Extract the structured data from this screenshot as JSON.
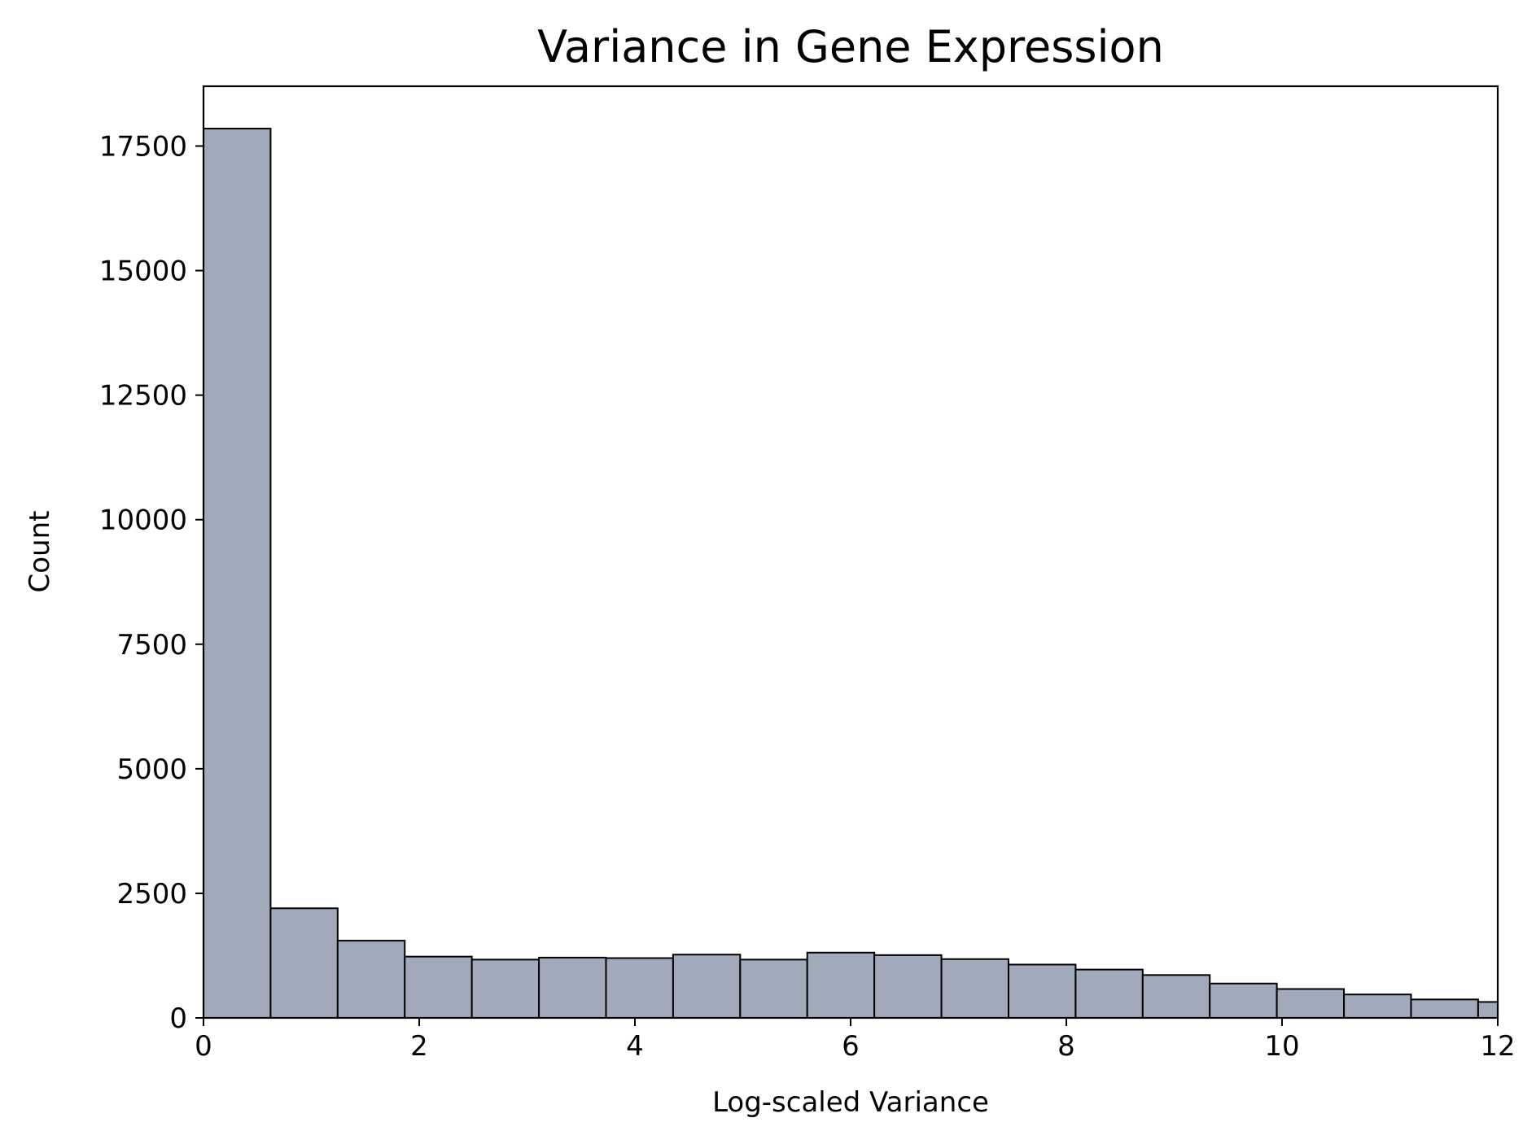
{
  "chart_data": {
    "type": "bar",
    "title": "Variance in Gene Expression",
    "xlabel": "Log-scaled Variance",
    "ylabel": "Count",
    "xlim": [
      0,
      12
    ],
    "ylim": [
      0,
      18700
    ],
    "xticks": [
      0,
      2,
      4,
      6,
      8,
      10,
      12
    ],
    "xtick_labels": [
      "0",
      "2",
      "4",
      "6",
      "8",
      "10",
      "12"
    ],
    "yticks": [
      0,
      2500,
      5000,
      7500,
      10000,
      12500,
      15000,
      17500
    ],
    "ytick_labels": [
      "0",
      "2500",
      "5000",
      "7500",
      "10000",
      "12500",
      "15000",
      "17500"
    ],
    "bin_width": 0.622,
    "bin_edges": [
      0,
      0.622,
      1.244,
      1.866,
      2.488,
      3.11,
      3.732,
      4.354,
      4.976,
      5.598,
      6.22,
      6.842,
      7.464,
      8.086,
      8.708,
      9.33,
      9.952,
      10.574,
      11.196,
      11.818,
      12.44
    ],
    "values": [
      17850,
      2200,
      1550,
      1230,
      1170,
      1210,
      1200,
      1270,
      1170,
      1310,
      1260,
      1180,
      1070,
      970,
      860,
      690,
      580,
      470,
      370,
      320
    ],
    "grid": false,
    "bar_color": "#a0aaba",
    "edge_color": "#000000"
  }
}
